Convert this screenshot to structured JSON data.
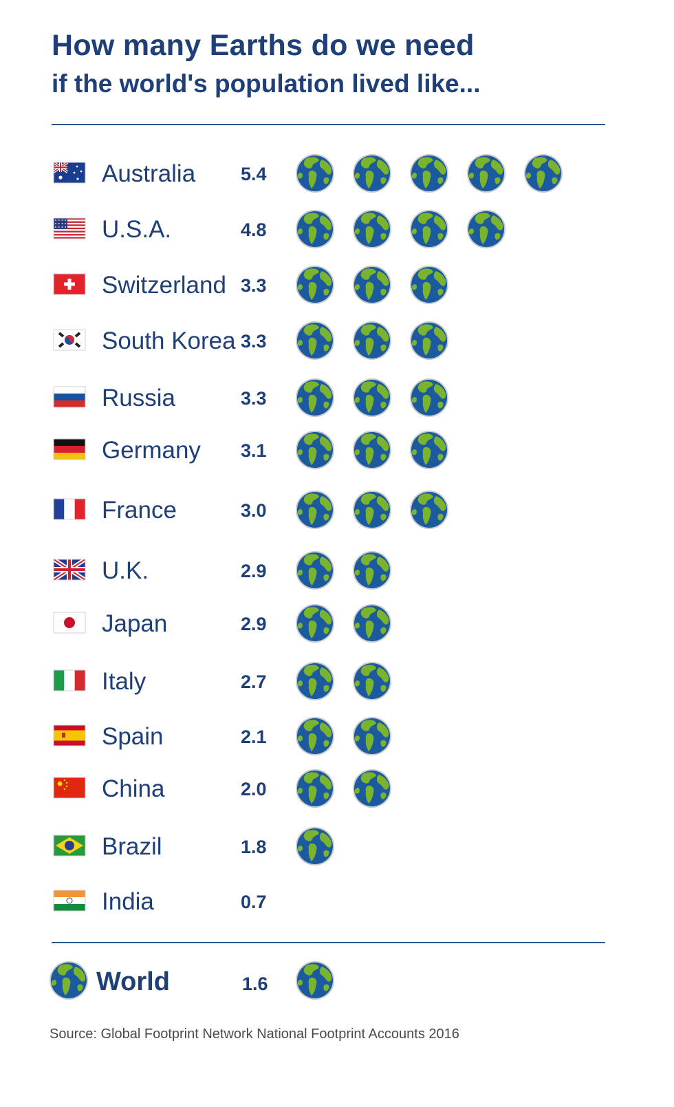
{
  "title": "How many Earths do we need",
  "subtitle": "if the world's population lived like...",
  "source": "Source: Global Footprint Network National Footprint Accounts 2016",
  "colors": {
    "text": "#1f3f78",
    "ocean": "#1c5aa0",
    "land": "#7ab32e",
    "rim": "#c9c9c9",
    "rule": "#2a5590"
  },
  "chart_data": {
    "type": "bar",
    "unit_icon": "earth-globe-icon",
    "categories": [
      "Australia",
      "U.S.A.",
      "Switzerland",
      "South Korea",
      "Russia",
      "Germany",
      "France",
      "U.K.",
      "Japan",
      "Italy",
      "Spain",
      "China",
      "Brazil",
      "India"
    ],
    "values": [
      5.4,
      4.8,
      3.3,
      3.3,
      3.3,
      3.1,
      3.0,
      2.9,
      2.9,
      2.7,
      2.1,
      2.0,
      1.8,
      0.7
    ],
    "value_labels": [
      "5.4",
      "4.8",
      "3.3",
      "3.3",
      "3.3",
      "3.1",
      "3.0",
      "2.9",
      "2.9",
      "2.7",
      "2.1",
      "2.0",
      "1.8",
      "0.7"
    ],
    "flags": [
      "australia-flag",
      "usa-flag",
      "switzerland-flag",
      "south-korea-flag",
      "russia-flag",
      "germany-flag",
      "france-flag",
      "uk-flag",
      "japan-flag",
      "italy-flag",
      "spain-flag",
      "china-flag",
      "brazil-flag",
      "india-flag"
    ],
    "total": {
      "label": "World",
      "value": 1.6,
      "value_label": "1.6",
      "icon": "earth-globe-icon"
    }
  }
}
